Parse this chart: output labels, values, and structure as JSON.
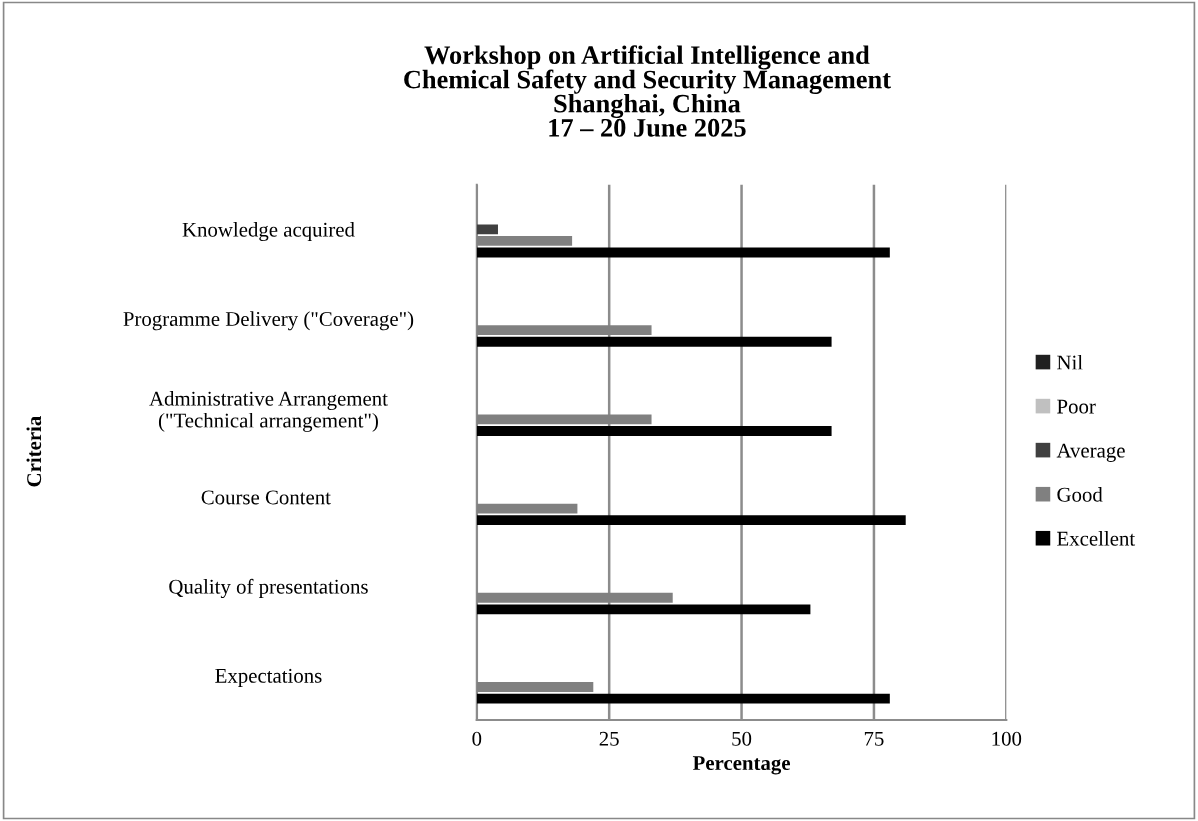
{
  "chart_data": {
    "type": "bar",
    "orientation": "horizontal",
    "title": "Workshop on Artificial Intelligence and\nChemical Safety and Security Management\nShanghai, China\n17 – 20 June 2025",
    "xlabel": "Percentage",
    "ylabel": "Criteria",
    "categories": [
      "Knowledge acquired",
      "Programme Delivery (\"Coverage\")",
      "Administrative Arrangement\n(\"Technical arrangement\")",
      "Course Content ",
      "Quality of presentations",
      "Expectations"
    ],
    "series": [
      {
        "name": "Nil",
        "color": "#202020",
        "values": [
          0,
          0,
          0,
          0,
          0,
          0
        ]
      },
      {
        "name": "Poor",
        "color": "#c0c0c0",
        "values": [
          0,
          0,
          0,
          0,
          0,
          0
        ]
      },
      {
        "name": "Average",
        "color": "#404040",
        "values": [
          4,
          0,
          0,
          0,
          0,
          0
        ]
      },
      {
        "name": "Good",
        "color": "#808080",
        "values": [
          18,
          33,
          33,
          19,
          37,
          22
        ]
      },
      {
        "name": "Excellent",
        "color": "#000000",
        "values": [
          78,
          67,
          67,
          81,
          63,
          78
        ]
      }
    ],
    "xlim": [
      0,
      100
    ],
    "xticks": [
      0,
      25,
      50,
      75,
      100
    ],
    "grid": "x",
    "legend": "right"
  }
}
